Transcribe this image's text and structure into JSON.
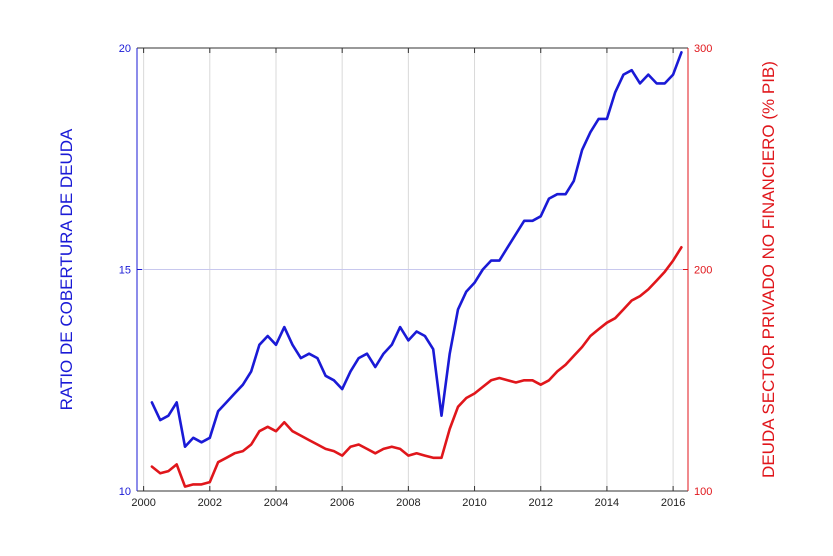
{
  "chart_data": {
    "type": "line",
    "ylabel": "RATIO DE COBERTURA DE DEUDA",
    "y2label": "DEUDA SECTOR PRIVADO NO FINANCIERO (% PIB)",
    "xlim": [
      1999.8,
      2016.45
    ],
    "ylim": [
      10,
      20
    ],
    "y2lim": [
      100,
      300
    ],
    "x_ticks": [
      2000,
      2002,
      2004,
      2006,
      2008,
      2010,
      2012,
      2014,
      2016
    ],
    "y_ticks": [
      10,
      15,
      20
    ],
    "y2_ticks": [
      100,
      200,
      300
    ],
    "grid": true,
    "series": [
      {
        "axis": "left",
        "color": "#1a1ad6",
        "x": [
          2000.25,
          2000.5,
          2000.75,
          2001.0,
          2001.25,
          2001.5,
          2001.75,
          2002.0,
          2002.25,
          2002.5,
          2002.75,
          2003.0,
          2003.25,
          2003.5,
          2003.75,
          2004.0,
          2004.25,
          2004.5,
          2004.75,
          2005.0,
          2005.25,
          2005.5,
          2005.75,
          2006.0,
          2006.25,
          2006.5,
          2006.75,
          2007.0,
          2007.25,
          2007.5,
          2007.75,
          2008.0,
          2008.25,
          2008.5,
          2008.75,
          2009.0,
          2009.25,
          2009.5,
          2009.75,
          2010.0,
          2010.25,
          2010.5,
          2010.75,
          2011.0,
          2011.25,
          2011.5,
          2011.75,
          2012.0,
          2012.25,
          2012.5,
          2012.75,
          2013.0,
          2013.25,
          2013.5,
          2013.75,
          2014.0,
          2014.25,
          2014.5,
          2014.75,
          2015.0,
          2015.25,
          2015.5,
          2015.75,
          2016.0,
          2016.25
        ],
        "values": [
          12.0,
          11.6,
          11.7,
          12.0,
          11.0,
          11.2,
          11.1,
          11.2,
          11.8,
          12.0,
          12.2,
          12.4,
          12.7,
          13.3,
          13.5,
          13.3,
          13.7,
          13.3,
          13.0,
          13.1,
          13.0,
          12.6,
          12.5,
          12.3,
          12.7,
          13.0,
          13.1,
          12.8,
          13.1,
          13.3,
          13.7,
          13.4,
          13.6,
          13.5,
          13.2,
          11.7,
          13.1,
          14.1,
          14.5,
          14.7,
          15.0,
          15.2,
          15.2,
          15.5,
          15.8,
          16.1,
          16.1,
          16.2,
          16.6,
          16.7,
          16.7,
          17.0,
          17.7,
          18.1,
          18.4,
          18.4,
          19.0,
          19.4,
          19.5,
          19.2,
          19.4,
          19.2,
          19.2,
          19.4,
          19.9
        ]
      },
      {
        "axis": "right",
        "color": "#e0161b",
        "x": [
          2000.25,
          2000.5,
          2000.75,
          2001.0,
          2001.25,
          2001.5,
          2001.75,
          2002.0,
          2002.25,
          2002.5,
          2002.75,
          2003.0,
          2003.25,
          2003.5,
          2003.75,
          2004.0,
          2004.25,
          2004.5,
          2004.75,
          2005.0,
          2005.25,
          2005.5,
          2005.75,
          2006.0,
          2006.25,
          2006.5,
          2006.75,
          2007.0,
          2007.25,
          2007.5,
          2007.75,
          2008.0,
          2008.25,
          2008.5,
          2008.75,
          2009.0,
          2009.25,
          2009.5,
          2009.75,
          2010.0,
          2010.25,
          2010.5,
          2010.75,
          2011.0,
          2011.25,
          2011.5,
          2011.75,
          2012.0,
          2012.25,
          2012.5,
          2012.75,
          2013.0,
          2013.25,
          2013.5,
          2013.75,
          2014.0,
          2014.25,
          2014.5,
          2014.75,
          2015.0,
          2015.25,
          2015.5,
          2015.75,
          2016.0,
          2016.25
        ],
        "values": [
          111,
          108,
          109,
          112,
          102,
          103,
          103,
          104,
          113,
          115,
          117,
          118,
          121,
          127,
          129,
          127,
          131,
          127,
          125,
          123,
          121,
          119,
          118,
          116,
          120,
          121,
          119,
          117,
          119,
          120,
          119,
          116,
          117,
          116,
          115,
          115,
          128,
          138,
          142,
          144,
          147,
          150,
          151,
          150,
          149,
          150,
          150,
          148,
          150,
          154,
          157,
          161,
          165,
          170,
          173,
          176,
          178,
          182,
          186,
          188,
          191,
          195,
          199,
          204,
          210
        ]
      }
    ]
  }
}
